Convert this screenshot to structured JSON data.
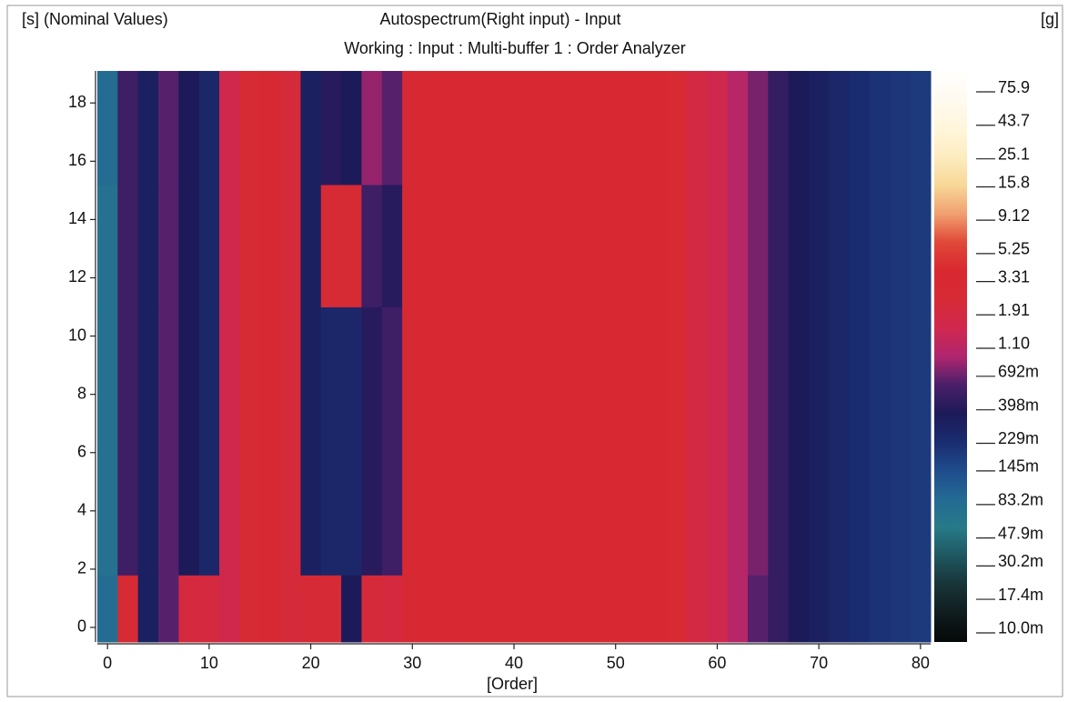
{
  "chart_data": {
    "type": "heatmap",
    "title": "Autospectrum(Right input) - Input",
    "subtitle": "Working : Input : Multi-buffer 1 : Order Analyzer",
    "ylabel": "[s] (Nominal Values)",
    "xlabel": "[Order]",
    "colorbar_label": "[g]",
    "xlim": [
      -1,
      81
    ],
    "ylim": [
      -0.5,
      19.1
    ],
    "xticks": [
      0,
      10,
      20,
      30,
      40,
      50,
      60,
      70,
      80
    ],
    "yticks": [
      0,
      2,
      4,
      6,
      8,
      10,
      12,
      14,
      16,
      18
    ],
    "x_edges": [
      -1,
      1,
      3,
      5,
      7,
      9,
      11,
      13,
      15,
      17,
      19,
      21,
      23,
      25,
      27,
      29,
      31,
      33,
      35,
      37,
      39,
      41,
      43,
      45,
      47,
      49,
      51,
      53,
      55,
      57,
      59,
      61,
      63,
      65,
      67,
      69,
      71,
      73,
      75,
      77,
      79,
      81
    ],
    "y_edges": [
      -0.5,
      1.8,
      11,
      15.2,
      19.1
    ],
    "z": [
      [
        0.08,
        2.5,
        0.3,
        0.6,
        2.0,
        2.0,
        1.5,
        2.5,
        2.8,
        2.2,
        2.4,
        2.4,
        0.35,
        2.2,
        2.0,
        2.8,
        3,
        3,
        3.2,
        3.2,
        3.3,
        3.3,
        3.4,
        3.3,
        3.2,
        3.2,
        3,
        3,
        2.6,
        1.8,
        1.5,
        1.0,
        0.6,
        0.45,
        0.35,
        0.3,
        0.25,
        0.22,
        0.2,
        0.19,
        0.18
      ],
      [
        0.07,
        0.5,
        0.3,
        0.6,
        0.35,
        0.25,
        1.5,
        2.5,
        2.8,
        2.2,
        0.3,
        0.25,
        0.25,
        0.4,
        0.5,
        2.8,
        3,
        3,
        3.2,
        3.2,
        3.3,
        3.3,
        3.4,
        3.3,
        3.2,
        3.2,
        3,
        3,
        2.6,
        1.8,
        1.5,
        1.0,
        0.7,
        0.45,
        0.35,
        0.3,
        0.25,
        0.22,
        0.2,
        0.19,
        0.18
      ],
      [
        0.07,
        0.5,
        0.3,
        0.6,
        0.35,
        0.25,
        1.5,
        2.5,
        2.8,
        2.2,
        0.3,
        2.5,
        2.5,
        0.5,
        0.4,
        2.8,
        3,
        3,
        3.2,
        3.2,
        3.3,
        3.3,
        3.4,
        3.3,
        3.2,
        3.2,
        3,
        3,
        2.6,
        1.8,
        1.5,
        1.0,
        0.7,
        0.45,
        0.35,
        0.3,
        0.25,
        0.22,
        0.2,
        0.19,
        0.18
      ],
      [
        0.08,
        0.5,
        0.3,
        0.6,
        0.35,
        0.25,
        1.5,
        2.5,
        2.8,
        2.2,
        0.3,
        0.4,
        0.35,
        0.8,
        0.6,
        2.8,
        3,
        3,
        3.2,
        3.2,
        3.3,
        3.3,
        3.4,
        3.3,
        3.2,
        3.2,
        3,
        3,
        2.6,
        1.8,
        1.5,
        1.0,
        0.7,
        0.45,
        0.35,
        0.3,
        0.25,
        0.22,
        0.2,
        0.19,
        0.18
      ]
    ],
    "clim": [
      0.0081,
      101
    ],
    "color_scale": "log",
    "colormap": [
      "#050808",
      "#101c1e",
      "#183438",
      "#1f5660",
      "#277a88",
      "#236a94",
      "#1f4c8c",
      "#1a2c70",
      "#1c1a58",
      "#4a1f6a",
      "#b0266e",
      "#d0284e",
      "#d62a36",
      "#d92830",
      "#e04838",
      "#f0a070",
      "#f8d898",
      "#fcecc0",
      "#fff6dc",
      "#fffaf0",
      "#ffffff"
    ],
    "cticks": [
      75.9,
      43.7,
      25.1,
      15.8,
      9.12,
      5.25,
      3.31,
      1.91,
      {
        "value": 1.1,
        "label": "1.10"
      },
      {
        "value": 0.692,
        "label": "692m"
      },
      {
        "value": 0.398,
        "label": "398m"
      },
      {
        "value": 0.229,
        "label": "229m"
      },
      {
        "value": 0.145,
        "label": "145m"
      },
      {
        "value": 0.0832,
        "label": "83.2m"
      },
      {
        "value": 0.0479,
        "label": "47.9m"
      },
      {
        "value": 0.0302,
        "label": "30.2m"
      },
      {
        "value": 0.0174,
        "label": "17.4m"
      },
      {
        "value": 0.01,
        "label": "10.0m"
      }
    ]
  }
}
